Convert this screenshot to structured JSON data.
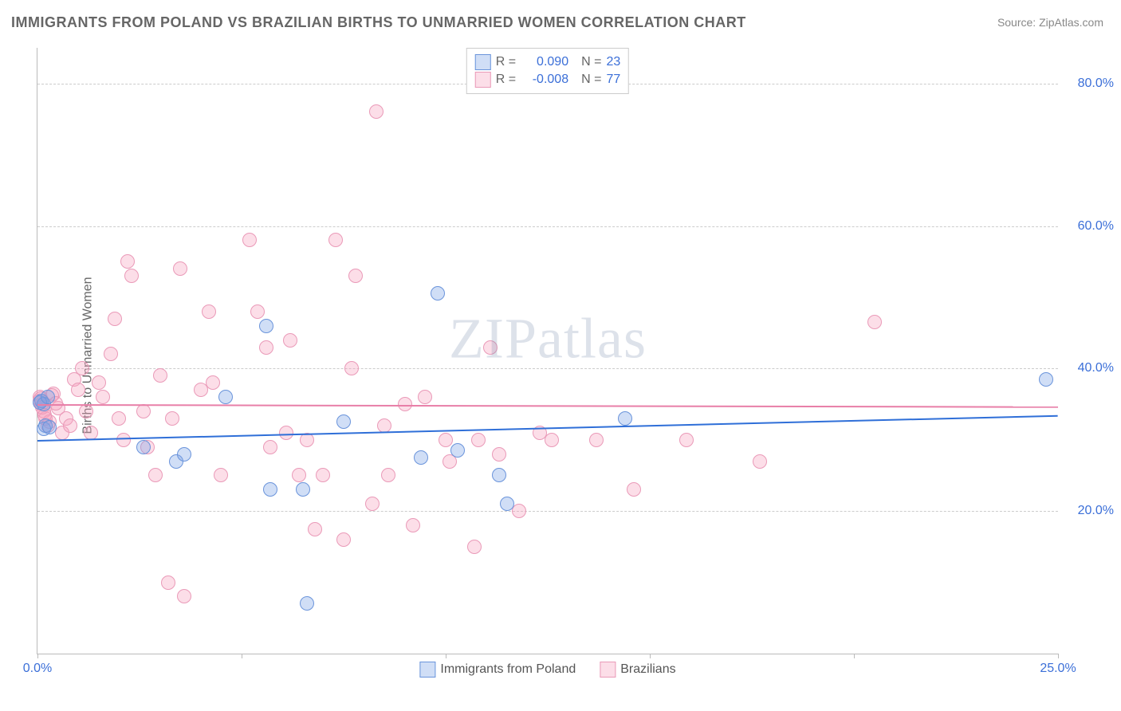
{
  "title": "IMMIGRANTS FROM POLAND VS BRAZILIAN BIRTHS TO UNMARRIED WOMEN CORRELATION CHART",
  "source_label": "Source: ZipAtlas.com",
  "ylabel": "Births to Unmarried Women",
  "watermark": "ZIPatlas",
  "chart": {
    "type": "scatter",
    "xlim": [
      0,
      25
    ],
    "ylim": [
      0,
      85
    ],
    "x_ticks": [
      0,
      5,
      10,
      15,
      20,
      25
    ],
    "x_tick_labels": [
      "0.0%",
      "",
      "",
      "",
      "",
      "25.0%"
    ],
    "y_gridlines": [
      20,
      40,
      60,
      80
    ],
    "y_tick_labels": [
      "20.0%",
      "40.0%",
      "60.0%",
      "80.0%"
    ],
    "background_color": "#ffffff",
    "grid_color": "#cccccc",
    "axis_color": "#bbbbbb",
    "tick_label_color": "#3b6fd8",
    "tick_label_fontsize": 16
  },
  "series": {
    "poland": {
      "label": "Immigrants from Poland",
      "fill": "rgba(120,160,230,0.35)",
      "stroke": "#6a94db",
      "trend_color": "#2f6fd8",
      "trend_width": 2,
      "R": "0.090",
      "N": "23",
      "trend": {
        "x1": 0,
        "y1": 30,
        "x2": 25,
        "y2": 33.5
      },
      "marker_radius": 8,
      "points": [
        [
          0.1,
          35.5
        ],
        [
          0.15,
          35
        ],
        [
          0.15,
          31.5
        ],
        [
          0.2,
          32
        ],
        [
          2.6,
          29
        ],
        [
          3.4,
          27
        ],
        [
          3.6,
          28
        ],
        [
          4.6,
          36
        ],
        [
          5.6,
          46
        ],
        [
          5.7,
          23
        ],
        [
          6.5,
          23
        ],
        [
          6.6,
          7
        ],
        [
          7.5,
          32.5
        ],
        [
          9.4,
          27.5
        ],
        [
          9.8,
          50.5
        ],
        [
          10.3,
          28.5
        ],
        [
          11.3,
          25
        ],
        [
          11.5,
          21
        ],
        [
          14.4,
          33
        ],
        [
          24.7,
          38.5
        ],
        [
          0.05,
          35.2
        ],
        [
          0.25,
          36
        ],
        [
          0.3,
          31.8
        ]
      ]
    },
    "brazil": {
      "label": "Brazilians",
      "fill": "rgba(245,160,190,0.35)",
      "stroke": "#ea9ab8",
      "trend_color": "#e87fa8",
      "trend_width": 2,
      "R": "-0.008",
      "N": "77",
      "trend": {
        "x1": 0,
        "y1": 35,
        "x2": 25,
        "y2": 34.7
      },
      "marker_radius": 8,
      "points": [
        [
          0.05,
          36
        ],
        [
          0.1,
          35
        ],
        [
          0.15,
          34
        ],
        [
          0.2,
          33
        ],
        [
          0.25,
          32
        ],
        [
          0.3,
          32.5
        ],
        [
          0.4,
          36.5
        ],
        [
          0.5,
          34.5
        ],
        [
          0.6,
          31
        ],
        [
          0.7,
          33
        ],
        [
          0.8,
          32
        ],
        [
          0.9,
          38.5
        ],
        [
          1.0,
          37
        ],
        [
          1.1,
          40
        ],
        [
          1.2,
          34
        ],
        [
          1.3,
          31
        ],
        [
          1.5,
          38
        ],
        [
          1.6,
          36
        ],
        [
          1.8,
          42
        ],
        [
          1.9,
          47
        ],
        [
          2.0,
          33
        ],
        [
          2.1,
          30
        ],
        [
          2.2,
          55
        ],
        [
          2.3,
          53
        ],
        [
          2.6,
          34
        ],
        [
          2.7,
          29
        ],
        [
          2.9,
          25
        ],
        [
          3.0,
          39
        ],
        [
          3.2,
          10
        ],
        [
          3.3,
          33
        ],
        [
          3.5,
          54
        ],
        [
          3.6,
          8
        ],
        [
          4.0,
          37
        ],
        [
          4.2,
          48
        ],
        [
          4.3,
          38
        ],
        [
          4.5,
          25
        ],
        [
          5.2,
          58
        ],
        [
          5.4,
          48
        ],
        [
          5.6,
          43
        ],
        [
          5.7,
          29
        ],
        [
          6.1,
          31
        ],
        [
          6.2,
          44
        ],
        [
          6.4,
          25
        ],
        [
          6.6,
          30
        ],
        [
          6.8,
          17.5
        ],
        [
          7.0,
          25
        ],
        [
          7.3,
          58
        ],
        [
          7.5,
          16
        ],
        [
          7.7,
          40
        ],
        [
          7.8,
          53
        ],
        [
          8.2,
          21
        ],
        [
          8.3,
          76
        ],
        [
          8.5,
          32
        ],
        [
          8.6,
          25
        ],
        [
          9.0,
          35
        ],
        [
          9.2,
          18
        ],
        [
          9.5,
          36
        ],
        [
          10.0,
          30
        ],
        [
          10.1,
          27
        ],
        [
          10.7,
          15
        ],
        [
          10.8,
          30
        ],
        [
          11.1,
          43
        ],
        [
          11.3,
          28
        ],
        [
          11.8,
          20
        ],
        [
          12.3,
          31
        ],
        [
          12.6,
          30
        ],
        [
          13.7,
          30
        ],
        [
          14.6,
          23
        ],
        [
          15.9,
          30
        ],
        [
          17.7,
          27
        ],
        [
          20.5,
          46.5
        ],
        [
          0.05,
          35.5
        ],
        [
          0.07,
          35.8
        ],
        [
          0.12,
          34.6
        ],
        [
          0.18,
          33.4
        ],
        [
          0.35,
          36.2
        ],
        [
          0.45,
          35.1
        ]
      ]
    }
  },
  "legend_top_rows": [
    {
      "swatch_fill": "rgba(120,160,230,0.35)",
      "swatch_stroke": "#6a94db",
      "R": "0.090",
      "N": "23"
    },
    {
      "swatch_fill": "rgba(245,160,190,0.35)",
      "swatch_stroke": "#ea9ab8",
      "R": "-0.008",
      "N": "77"
    }
  ],
  "legend_bottom": [
    {
      "swatch_fill": "rgba(120,160,230,0.35)",
      "swatch_stroke": "#6a94db",
      "label": "Immigrants from Poland"
    },
    {
      "swatch_fill": "rgba(245,160,190,0.35)",
      "swatch_stroke": "#ea9ab8",
      "label": "Brazilians"
    }
  ]
}
